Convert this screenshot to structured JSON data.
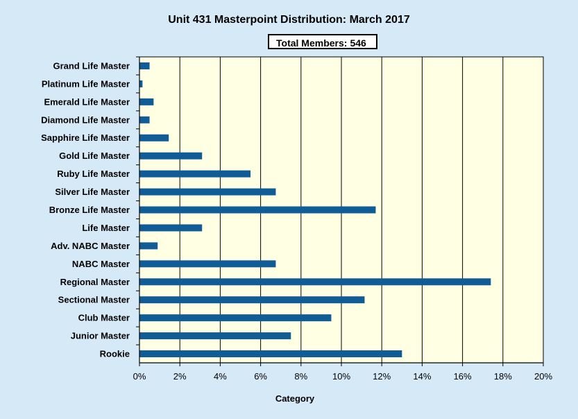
{
  "chart_data": {
    "type": "bar",
    "orientation": "horizontal",
    "title": "Unit 431 Masterpoint Distribution: March 2017",
    "annotation": {
      "label": "Total Members:",
      "value": "546"
    },
    "xlabel": "Category",
    "ylabel": "",
    "xlim": [
      0,
      20
    ],
    "x_ticks": [
      "0%",
      "2%",
      "4%",
      "6%",
      "8%",
      "10%",
      "12%",
      "14%",
      "16%",
      "18%",
      "20%"
    ],
    "categories": [
      "Grand Life Master",
      "Platinum Life Master",
      "Emerald Life Master",
      "Diamond Life Master",
      "Sapphire Life Master",
      "Gold Life Master",
      "Ruby Life Master",
      "Silver Life Master",
      "Bronze Life Master",
      "Life Master",
      "Adv. NABC Master",
      "NABC Master",
      "Regional Master",
      "Sectional Master",
      "Club Master",
      "Junior Master",
      "Rookie"
    ],
    "values": [
      0.5,
      0.15,
      0.7,
      0.5,
      1.45,
      3.1,
      5.5,
      6.75,
      11.7,
      3.1,
      0.9,
      6.75,
      17.4,
      11.15,
      9.5,
      7.5,
      13.0
    ],
    "grid": true,
    "legend": "none",
    "colors": {
      "bar": "#0f5c97",
      "plot_background": "#ffffe3",
      "page_background": "#d6e9f6"
    }
  }
}
